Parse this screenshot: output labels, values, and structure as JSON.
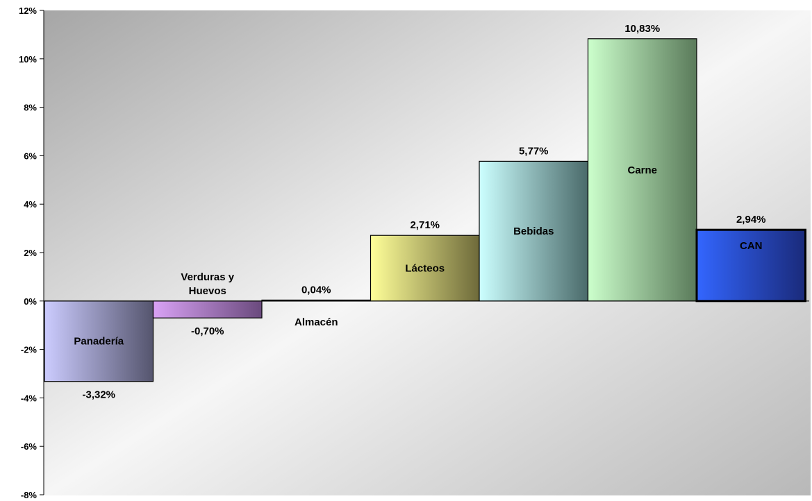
{
  "chart_data": {
    "type": "bar",
    "title": "",
    "xlabel": "",
    "ylabel": "",
    "ylim": [
      -8,
      12
    ],
    "y_step": 2,
    "y_tick_suffix": "%",
    "grid": false,
    "legend": "none",
    "categories": [
      {
        "name": "Panadería",
        "lines": [
          "Panadería"
        ],
        "label_position": "inside"
      },
      {
        "name": "Verduras y Huevos",
        "lines": [
          "Verduras y",
          "Huevos"
        ],
        "label_position": "above-axis"
      },
      {
        "name": "Almacén",
        "lines": [
          "Almacén"
        ],
        "label_position": "below-axis"
      },
      {
        "name": "Lácteos",
        "lines": [
          "Lácteos"
        ],
        "label_position": "inside"
      },
      {
        "name": "Bebidas",
        "lines": [
          "Bebidas"
        ],
        "label_position": "inside"
      },
      {
        "name": "Carne",
        "lines": [
          "Carne"
        ],
        "label_position": "inside"
      },
      {
        "name": "CAN",
        "lines": [
          "CAN"
        ],
        "label_position": "inside-top"
      }
    ],
    "values": [
      -3.32,
      -0.7,
      0.04,
      2.71,
      5.77,
      10.83,
      2.94
    ],
    "value_labels": [
      "-3,32%",
      "-0,70%",
      "0,04%",
      "2,71%",
      "5,77%",
      "10,83%",
      "2,94%"
    ],
    "y_tick_labels": [
      "-8%",
      "-6%",
      "-4%",
      "-2%",
      "0%",
      "2%",
      "4%",
      "6%",
      "8%",
      "10%",
      "12%"
    ],
    "colors": [
      {
        "light": "#ccccff",
        "dark": "#55556e",
        "label": "#000000"
      },
      {
        "light": "#d9a2f5",
        "dark": "#6a4a7d",
        "label": "#000000"
      },
      {
        "light": "#aaaaaa",
        "dark": "#333333",
        "label": "#000000"
      },
      {
        "light": "#ffff99",
        "dark": "#6e6a3a",
        "label": "#000000"
      },
      {
        "light": "#ccffff",
        "dark": "#4a6a6a",
        "label": "#000000"
      },
      {
        "light": "#ccffcc",
        "dark": "#5a7a5a",
        "label": "#000000"
      },
      {
        "light": "#3366ff",
        "dark": "#1a2a7a",
        "label": "#ffffff"
      }
    ]
  }
}
